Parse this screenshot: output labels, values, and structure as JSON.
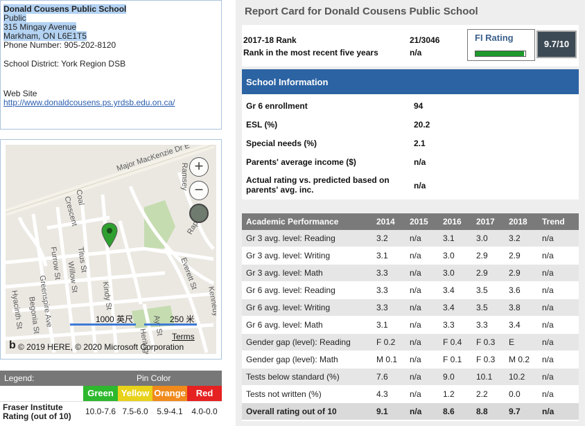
{
  "school": {
    "name": "Donald Cousens Public School",
    "type": "Public",
    "street": "315 Mingay Avenue",
    "city": "Markham, ON L6E1T5",
    "phone": "Phone Number: 905-202-8120",
    "district": "School District: York Region DSB",
    "website_label": "Web Site",
    "website_url": "http://www.donaldcousens.ps.yrdsb.edu.on.ca/"
  },
  "map": {
    "streets": [
      "Major MacKenzie Dr E",
      "Crescent",
      "Coal",
      "Titus St",
      "Furrow St",
      "Willow St",
      "Greenspire Ave",
      "Begonia St",
      "Hyacinth St",
      "Kindy St",
      "Everett St",
      "Raph Cr",
      "Kennedy",
      "Ayr St",
      "Heritage",
      "Ramsey"
    ],
    "scale_1": "1000 英尺",
    "scale_2": "250 米",
    "terms": "Terms",
    "copyright": "© 2019 HERE, © 2020 Microsoft Corporation",
    "zoom_in": "+",
    "zoom_out": "−",
    "pin_color": "#2fa02f"
  },
  "legend": {
    "title": "Legend:",
    "pin_color_label": "Pin Color",
    "colors": [
      {
        "name": "Green",
        "hex": "#2eb82e",
        "range": "10.0-7.6"
      },
      {
        "name": "Yellow",
        "hex": "#e8d21a",
        "range": "7.5-6.0"
      },
      {
        "name": "Orange",
        "hex": "#f08a1c",
        "range": "5.9-4.1"
      },
      {
        "name": "Red",
        "hex": "#e52121",
        "range": "4.0-0.0"
      }
    ],
    "rating_label_1": "Fraser Institute",
    "rating_label_2": "Rating (out of 10)"
  },
  "report": {
    "title": "Report Card for Donald Cousens Public School",
    "rank_label": "2017-18 Rank",
    "rank_value": "21/3046",
    "rank5_label": "Rank in the most recent five years",
    "rank5_value": "n/a",
    "fi_label": "FI Rating",
    "fi_value": "9.7/10",
    "fi_fraction": 0.97
  },
  "school_info": {
    "header": "School Information",
    "rows": [
      {
        "label": "Gr 6 enrollment",
        "value": "94"
      },
      {
        "label": "ESL (%)",
        "value": "20.2"
      },
      {
        "label": "Special needs (%)",
        "value": "2.1"
      },
      {
        "label": "Parents' average income ($)",
        "value": "n/a"
      },
      {
        "label1": "Actual rating vs. predicted based on",
        "label2": "parents' avg. inc.",
        "value": "n/a"
      }
    ]
  },
  "academic": {
    "headers": [
      "Academic Performance",
      "2014",
      "2015",
      "2016",
      "2017",
      "2018",
      "Trend"
    ],
    "rows": [
      [
        "Gr 3 avg. level: Reading",
        "3.2",
        "n/a",
        "3.1",
        "3.0",
        "3.2",
        "n/a"
      ],
      [
        "Gr 3 avg. level: Writing",
        "3.1",
        "n/a",
        "3.0",
        "2.9",
        "2.9",
        "n/a"
      ],
      [
        "Gr 3 avg. level: Math",
        "3.3",
        "n/a",
        "3.0",
        "2.9",
        "2.9",
        "n/a"
      ],
      [
        "Gr 6 avg. level: Reading",
        "3.3",
        "n/a",
        "3.4",
        "3.5",
        "3.6",
        "n/a"
      ],
      [
        "Gr 6 avg. level: Writing",
        "3.3",
        "n/a",
        "3.4",
        "3.5",
        "3.8",
        "n/a"
      ],
      [
        "Gr 6 avg. level: Math",
        "3.1",
        "n/a",
        "3.3",
        "3.3",
        "3.4",
        "n/a"
      ],
      [
        "Gender gap (level): Reading",
        "F 0.2",
        "n/a",
        "F 0.4",
        "F 0.3",
        "E",
        "n/a"
      ],
      [
        "Gender gap (level): Math",
        "M 0.1",
        "n/a",
        "F 0.1",
        "F 0.3",
        "M 0.2",
        "n/a"
      ],
      [
        "Tests below standard (%)",
        "7.6",
        "n/a",
        "9.0",
        "10.1",
        "10.2",
        "n/a"
      ],
      [
        "Tests not written (%)",
        "4.3",
        "n/a",
        "1.2",
        "2.2",
        "0.0",
        "n/a"
      ],
      [
        "Overall rating out of 10",
        "9.1",
        "n/a",
        "8.6",
        "8.8",
        "9.7",
        "n/a"
      ]
    ]
  }
}
